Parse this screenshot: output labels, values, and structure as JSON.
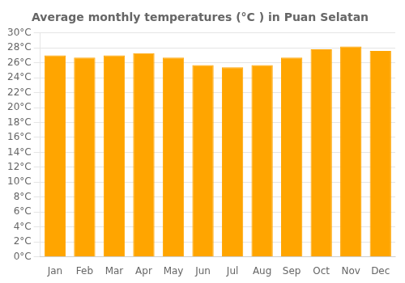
{
  "chart_data": {
    "type": "bar",
    "title": "Average monthly temperatures (°C ) in Puan Selatan",
    "categories": [
      "Jan",
      "Feb",
      "Mar",
      "Apr",
      "May",
      "Jun",
      "Jul",
      "Aug",
      "Sep",
      "Oct",
      "Nov",
      "Dec"
    ],
    "values": [
      27.0,
      26.7,
      27.0,
      27.3,
      26.7,
      25.7,
      25.4,
      25.7,
      26.7,
      27.8,
      28.2,
      27.6
    ],
    "color": "#FFA500",
    "ylim": [
      0,
      30
    ],
    "yticks": [
      {
        "value": 0,
        "label": "0°C"
      },
      {
        "value": 2,
        "label": "2°C"
      },
      {
        "value": 4,
        "label": "4°C"
      },
      {
        "value": 6,
        "label": "6°C"
      },
      {
        "value": 8,
        "label": "8°C"
      },
      {
        "value": 10,
        "label": "10°C"
      },
      {
        "value": 12,
        "label": "12°C"
      },
      {
        "value": 14,
        "label": "14°C"
      },
      {
        "value": 16,
        "label": "16°C"
      },
      {
        "value": 18,
        "label": "18°C"
      },
      {
        "value": 20,
        "label": "20°C"
      },
      {
        "value": 22,
        "label": "22°C"
      },
      {
        "value": 24,
        "label": "24°C"
      },
      {
        "value": 26,
        "label": "26°C"
      },
      {
        "value": 28,
        "label": "28°C"
      },
      {
        "value": 30,
        "label": "30°C"
      }
    ],
    "grid": true
  }
}
